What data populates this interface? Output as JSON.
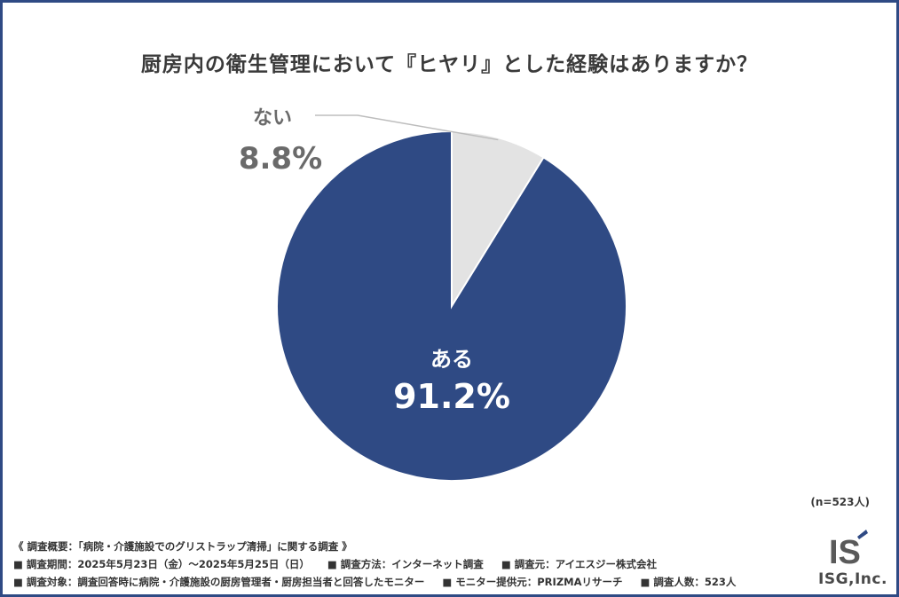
{
  "header": {
    "title": "厨房内の衛生管理において『ヒヤリ』とした経験はありますか？"
  },
  "chart_data": {
    "type": "pie",
    "title": "厨房内の衛生管理において『ヒヤリ』とした経験はありますか？",
    "categories": [
      "ある",
      "ない"
    ],
    "values": [
      91.2,
      8.8
    ],
    "value_labels": [
      "91.2%",
      "8.8%"
    ],
    "colors": [
      "#2f4a84",
      "#e3e3e3"
    ],
    "label_colors": [
      "#ffffff",
      "#6a6a6a"
    ],
    "start": "12 o'clock, counter-clockwise",
    "sample_size": "(n=523人)"
  },
  "notes": {
    "summary": "《 調査概要：「病院・介護施設でのグリストラップ清掃」に関する調査 》",
    "period": "■ 調査期間：2025年5月23日（金）～2025年5月25日（日）",
    "method": "■ 調査方法：インターネット調査",
    "organizer": "■ 調査元：アイエスジー株式会社",
    "target": "■ 調査対象：調査回答時に病院・介護施設の厨房管理者・厨房担当者と回答したモニター",
    "provider": "■ モニター提供元：PRIZMAリサーチ",
    "count": "■ 調査人数：523人"
  },
  "logo": {
    "text": "ISG,Inc.",
    "mark": "IS"
  }
}
